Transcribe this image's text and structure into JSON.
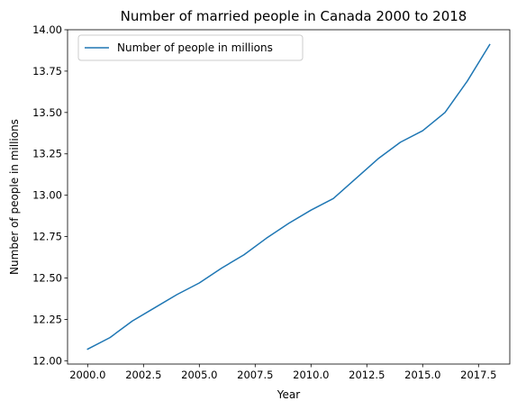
{
  "chart_data": {
    "type": "line",
    "title": "Number of married people in Canada 2000 to 2018",
    "xlabel": "Year",
    "ylabel": "Number of people in millions",
    "xlim": [
      1999.1,
      2018.9
    ],
    "ylim": [
      11.98,
      14.0
    ],
    "xticks": [
      2000.0,
      2002.5,
      2005.0,
      2007.5,
      2010.0,
      2012.5,
      2015.0,
      2017.5
    ],
    "xtick_labels": [
      "2000.0",
      "2002.5",
      "2005.0",
      "2007.5",
      "2010.0",
      "2012.5",
      "2015.0",
      "2017.5"
    ],
    "yticks": [
      12.0,
      12.25,
      12.5,
      12.75,
      13.0,
      13.25,
      13.5,
      13.75,
      14.0
    ],
    "ytick_labels": [
      "12.00",
      "12.25",
      "12.50",
      "12.75",
      "13.00",
      "13.25",
      "13.50",
      "13.75",
      "14.00"
    ],
    "grid": false,
    "legend_position": "top-left",
    "series": [
      {
        "name": "Number of people in millions",
        "color": "#1f77b4",
        "x": [
          2000,
          2001,
          2002,
          2003,
          2004,
          2005,
          2006,
          2007,
          2008,
          2009,
          2010,
          2011,
          2012,
          2013,
          2014,
          2015,
          2016,
          2017,
          2018
        ],
        "y": [
          12.07,
          12.14,
          12.24,
          12.32,
          12.4,
          12.47,
          12.56,
          12.64,
          12.74,
          12.83,
          12.91,
          12.98,
          13.1,
          13.22,
          13.32,
          13.39,
          13.5,
          13.69,
          13.91
        ]
      }
    ]
  }
}
